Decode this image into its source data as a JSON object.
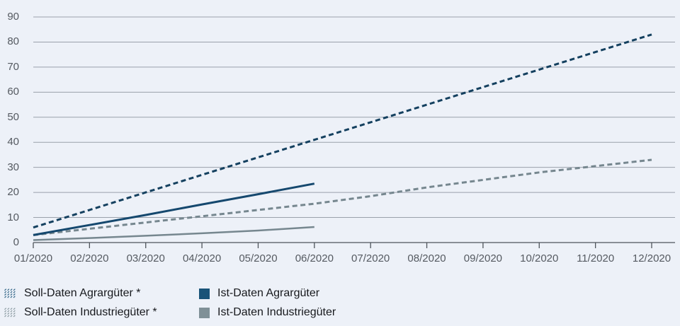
{
  "colors": {
    "background": "#edf1f8",
    "grid": "#9aa1ab",
    "axis": "#4e545b",
    "tick_label": "#555a61",
    "legend_text": "#17191d",
    "navy_dashed": "#14405f",
    "navy_solid": "#15486e",
    "gray_line": "#76878f",
    "legend_navy_swatch": "#195378",
    "legend_gray_swatch": "#7f9097"
  },
  "chart_data": {
    "type": "line",
    "title": "",
    "xlabel": "",
    "ylabel": "",
    "x_categories": [
      "01/2020",
      "02/2020",
      "03/2020",
      "04/2020",
      "05/2020",
      "06/2020",
      "07/2020",
      "08/2020",
      "09/2020",
      "10/2020",
      "11/2020",
      "12/2020"
    ],
    "y_ticks": [
      0,
      10,
      20,
      30,
      40,
      50,
      60,
      70,
      80,
      90
    ],
    "ylim": [
      0,
      90
    ],
    "grid": true,
    "legend_position": "bottom-left",
    "series": [
      {
        "id": "soll-agrar",
        "name": "Soll-Daten Agrargüter *",
        "style": "dashed",
        "color": "#14405f",
        "width": 3,
        "values": [
          6,
          13,
          20,
          27,
          34,
          41,
          48,
          55,
          62,
          69,
          76,
          83
        ]
      },
      {
        "id": "soll-industrie",
        "name": "Soll-Daten Industriegüter *",
        "style": "dashed",
        "color": "#76878f",
        "width": 3,
        "values": [
          3,
          5.5,
          8,
          10.5,
          13,
          15.5,
          18.5,
          22,
          25,
          28,
          30.5,
          33
        ]
      },
      {
        "id": "ist-industrie",
        "name": "Ist-Daten Industriegüter",
        "style": "solid",
        "color": "#76878f",
        "width": 2.5,
        "values": [
          1,
          1.8,
          2.7,
          3.7,
          4.8,
          6.2
        ]
      },
      {
        "id": "ist-agrar",
        "name": "Ist-Daten Agrargüter",
        "style": "solid",
        "color": "#15486e",
        "width": 3,
        "values": [
          3,
          7,
          11,
          15.2,
          19.3,
          23.5
        ]
      }
    ]
  },
  "legend": {
    "items": [
      {
        "label": "Soll-Daten Agrargüter *",
        "swatch": "dotted-navy"
      },
      {
        "label": "Soll-Daten Industriegüter *",
        "swatch": "dotted-gray"
      },
      {
        "label": "Ist-Daten Agrargüter",
        "swatch": "solid-navy"
      },
      {
        "label": "Ist-Daten Industriegüter",
        "swatch": "solid-gray"
      }
    ]
  }
}
